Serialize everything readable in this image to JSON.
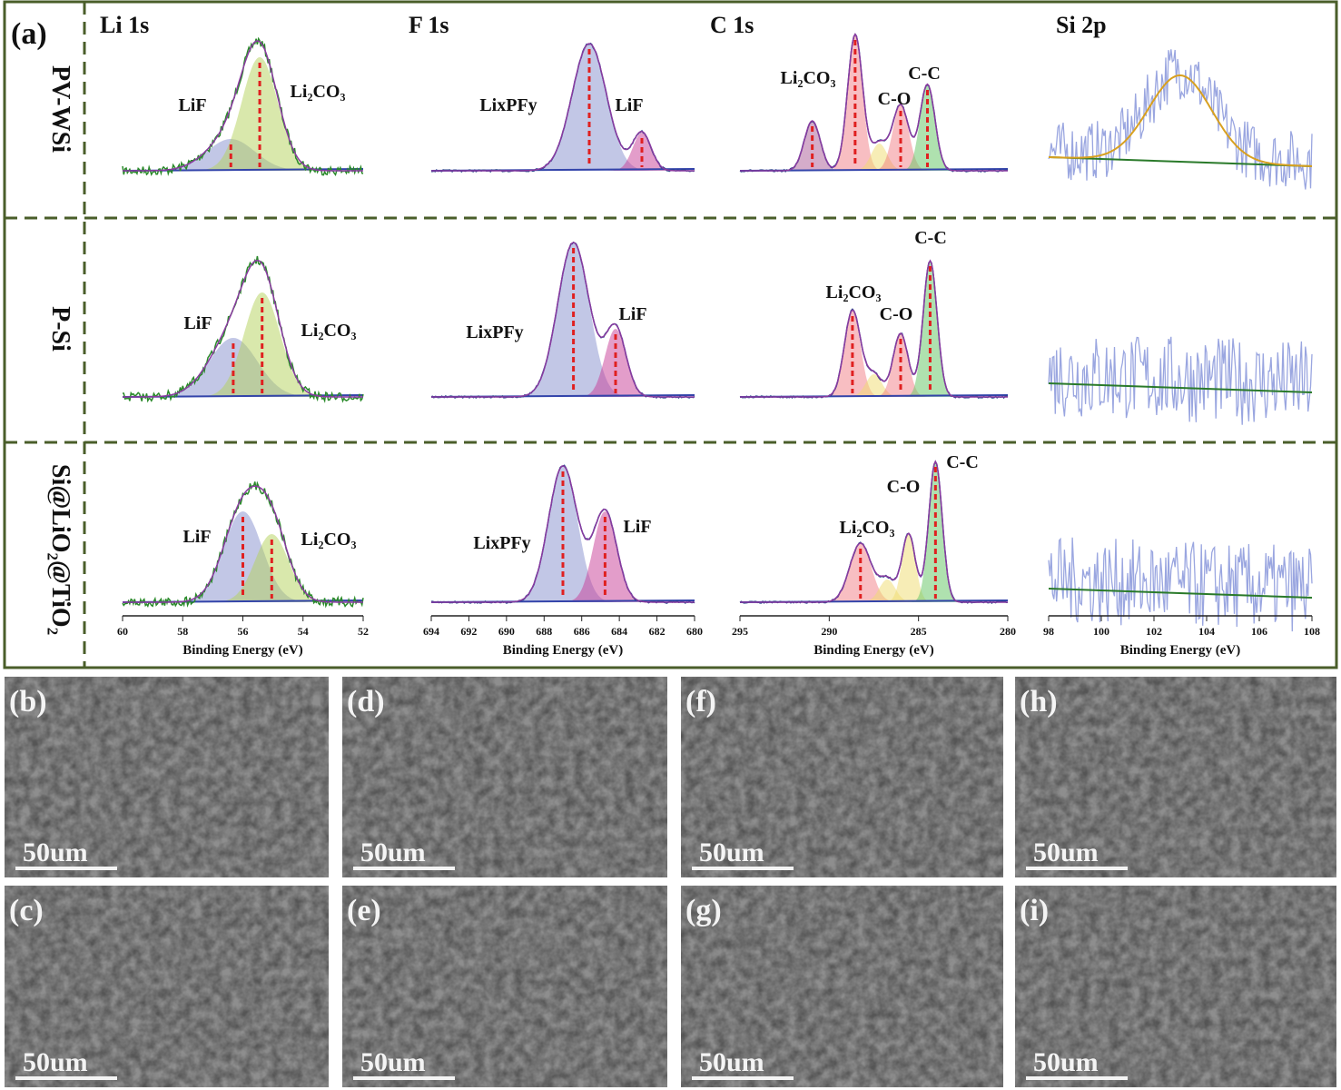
{
  "panel_a": {
    "label": "(a)",
    "columns": [
      {
        "title": "Li 1s",
        "xticks": [
          60,
          58,
          56,
          54,
          52
        ],
        "xlabel": "Binding Energy (eV)"
      },
      {
        "title": "F 1s",
        "xticks": [
          694,
          692,
          690,
          688,
          686,
          684,
          682,
          680
        ],
        "xlabel": "Binding Energy (eV)"
      },
      {
        "title": "C 1s",
        "xticks": [
          295,
          290,
          285,
          280
        ],
        "xlabel": "Binding Energy (eV)"
      },
      {
        "title": "Si 2p",
        "xticks": [
          98,
          100,
          102,
          104,
          106,
          108
        ],
        "xlabel": "Binding Energy (eV)"
      }
    ],
    "rows": [
      {
        "label": "PV-WSi",
        "peaks": [
          [
            "LiF",
            "Li₂CO₃"
          ],
          [
            "LixPFy",
            "LiF"
          ],
          [
            "Li₂CO₃",
            "C-O",
            "C-C"
          ],
          []
        ]
      },
      {
        "label": "P-Si",
        "peaks": [
          [
            "LiF",
            "Li₂CO₃"
          ],
          [
            "LixPFy",
            "LiF"
          ],
          [
            "Li₂CO₃",
            "C-O",
            "C-C"
          ],
          []
        ]
      },
      {
        "label": "Si@LiO₂@TiO₂",
        "peaks": [
          [
            "LiF",
            "Li₂CO₃"
          ],
          [
            "LixPFy",
            "LiF"
          ],
          [
            "Li₂CO₃",
            "C-O",
            "C-C"
          ],
          []
        ]
      }
    ]
  },
  "sem_panels": [
    {
      "label": "(b)",
      "scale_bar": "50um"
    },
    {
      "label": "(d)",
      "scale_bar": "50um"
    },
    {
      "label": "(f)",
      "scale_bar": "50um"
    },
    {
      "label": "(h)",
      "scale_bar": "50um"
    },
    {
      "label": "(c)",
      "scale_bar": "50um"
    },
    {
      "label": "(e)",
      "scale_bar": "50um"
    },
    {
      "label": "(g)",
      "scale_bar": "50um"
    },
    {
      "label": "(i)",
      "scale_bar": "50um"
    }
  ]
}
